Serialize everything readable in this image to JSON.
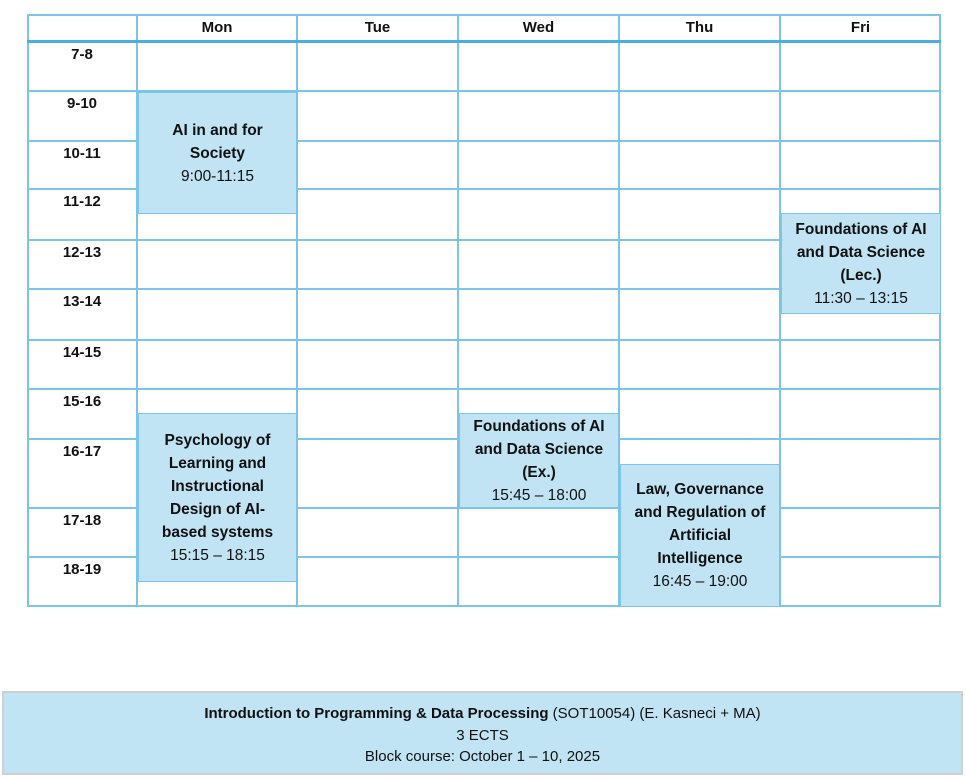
{
  "days": [
    "Mon",
    "Tue",
    "Wed",
    "Thu",
    "Fri"
  ],
  "times": [
    "7-8",
    "9-10",
    "10-11",
    "11-12",
    "12-13",
    "13-14",
    "14-15",
    "15-16",
    "16-17",
    "17-18",
    "18-19"
  ],
  "events": [
    {
      "title": "AI in and for Society",
      "time": "9:00-11:15",
      "day": "Mon"
    },
    {
      "title": "Foundations of AI and Data Science (Lec.)",
      "time": "11:30 – 13:15",
      "day": "Fri"
    },
    {
      "title": "Psychology of Learning and Instructional Design of AI-based systems",
      "time": "15:15 – 18:15",
      "day": "Mon"
    },
    {
      "title": "Foundations of AI and Data Science (Ex.)",
      "time": "15:45 – 18:00",
      "day": "Wed"
    },
    {
      "title": "Law, Governance and Regulation of Artificial Intelligence",
      "time": "16:45 – 19:00",
      "day": "Thu"
    }
  ],
  "footer": {
    "course_title": "Introduction to Programming & Data Processing",
    "course_details": " (SOT10054) (E. Kasneci + MA)",
    "credits": "3 ECTS",
    "schedule": "Block course: October 1 – 10, 2025"
  },
  "colors": {
    "border": "#7cc4e8",
    "event_fill": "#c0e4f4"
  }
}
